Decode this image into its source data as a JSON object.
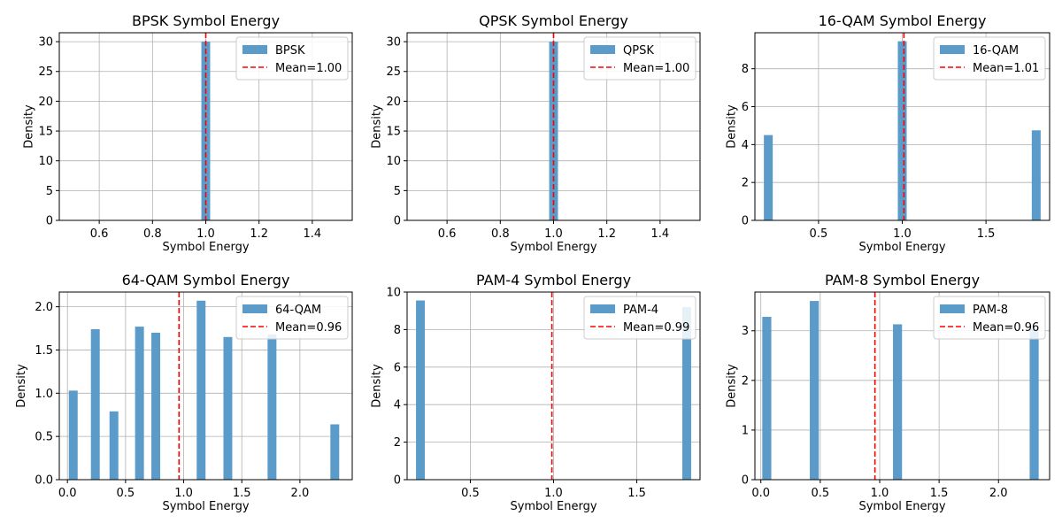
{
  "chart_data": [
    {
      "type": "bar",
      "title": "BPSK Symbol Energy",
      "xlabel": "Symbol Energy",
      "ylabel": "Density",
      "xlim": [
        0.45,
        1.55
      ],
      "ylim": [
        0,
        31.5
      ],
      "xticks": [
        0.6,
        0.8,
        1.0,
        1.2,
        1.4
      ],
      "xtick_labels": [
        "0.6",
        "0.8",
        "1.0",
        "1.2",
        "1.4"
      ],
      "yticks": [
        0,
        5,
        10,
        15,
        20,
        25,
        30
      ],
      "ytick_labels": [
        "0",
        "5",
        "10",
        "15",
        "20",
        "25",
        "30"
      ],
      "bar_width": 0.033,
      "bars": [
        {
          "x": 1.0,
          "value": 30.0
        }
      ],
      "mean": 1.0,
      "legend": {
        "series": "BPSK",
        "mean": "Mean=1.00",
        "position": "top-right"
      },
      "grid": true
    },
    {
      "type": "bar",
      "title": "QPSK Symbol Energy",
      "xlabel": "Symbol Energy",
      "ylabel": "Density",
      "xlim": [
        0.45,
        1.55
      ],
      "ylim": [
        0,
        31.5
      ],
      "xticks": [
        0.6,
        0.8,
        1.0,
        1.2,
        1.4
      ],
      "xtick_labels": [
        "0.6",
        "0.8",
        "1.0",
        "1.2",
        "1.4"
      ],
      "yticks": [
        0,
        5,
        10,
        15,
        20,
        25,
        30
      ],
      "ytick_labels": [
        "0",
        "5",
        "10",
        "15",
        "20",
        "25",
        "30"
      ],
      "bar_width": 0.033,
      "bars": [
        {
          "x": 1.0,
          "value": 30.0
        }
      ],
      "mean": 1.0,
      "legend": {
        "series": "QPSK",
        "mean": "Mean=1.00",
        "position": "top-right"
      },
      "grid": true
    },
    {
      "type": "bar",
      "title": "16-QAM Symbol Energy",
      "xlabel": "Symbol Energy",
      "ylabel": "Density",
      "xlim": [
        0.12,
        1.88
      ],
      "ylim": [
        0,
        9.9
      ],
      "xticks": [
        0.5,
        1.0,
        1.5
      ],
      "xtick_labels": [
        "0.5",
        "1.0",
        "1.5"
      ],
      "yticks": [
        0,
        2,
        4,
        6,
        8
      ],
      "ytick_labels": [
        "0",
        "2",
        "4",
        "6",
        "8"
      ],
      "bar_width": 0.053,
      "bars": [
        {
          "x": 0.2,
          "value": 4.5
        },
        {
          "x": 1.0,
          "value": 9.45
        },
        {
          "x": 1.8,
          "value": 4.75
        }
      ],
      "mean": 1.01,
      "legend": {
        "series": "16-QAM",
        "mean": "Mean=1.01",
        "position": "top-right"
      },
      "grid": true
    },
    {
      "type": "bar",
      "title": "64-QAM Symbol Energy",
      "xlabel": "Symbol Energy",
      "ylabel": "Density",
      "xlim": [
        -0.07,
        2.45
      ],
      "ylim": [
        0,
        2.17
      ],
      "xticks": [
        0.0,
        0.5,
        1.0,
        1.5,
        2.0
      ],
      "xtick_labels": [
        "0.0",
        "0.5",
        "1.0",
        "1.5",
        "2.0"
      ],
      "yticks": [
        0,
        0.5,
        1.0,
        1.5,
        2.0
      ],
      "ytick_labels": [
        "0.0",
        "0.5",
        "1.0",
        "1.5",
        "2.0"
      ],
      "bar_width": 0.076,
      "bars": [
        {
          "x": 0.05,
          "value": 1.03
        },
        {
          "x": 0.24,
          "value": 1.74
        },
        {
          "x": 0.4,
          "value": 0.79
        },
        {
          "x": 0.62,
          "value": 1.77
        },
        {
          "x": 0.76,
          "value": 1.7
        },
        {
          "x": 1.15,
          "value": 2.07
        },
        {
          "x": 1.38,
          "value": 1.65
        },
        {
          "x": 1.76,
          "value": 1.68
        },
        {
          "x": 2.3,
          "value": 0.64
        }
      ],
      "mean": 0.96,
      "legend": {
        "series": "64-QAM",
        "mean": "Mean=0.96",
        "position": "top-right"
      },
      "grid": true
    },
    {
      "type": "bar",
      "title": "PAM-4 Symbol Energy",
      "xlabel": "Symbol Energy",
      "ylabel": "Density",
      "xlim": [
        0.12,
        1.88
      ],
      "ylim": [
        0,
        10
      ],
      "xticks": [
        0.5,
        1.0,
        1.5
      ],
      "xtick_labels": [
        "0.5",
        "1.0",
        "1.5"
      ],
      "yticks": [
        0,
        2,
        4,
        6,
        8,
        10
      ],
      "ytick_labels": [
        "0",
        "2",
        "4",
        "6",
        "8",
        "10"
      ],
      "bar_width": 0.053,
      "bars": [
        {
          "x": 0.2,
          "value": 9.55
        },
        {
          "x": 1.8,
          "value": 9.2
        }
      ],
      "mean": 0.99,
      "legend": {
        "series": "PAM-4",
        "mean": "Mean=0.99",
        "position": "top-right"
      },
      "grid": true
    },
    {
      "type": "bar",
      "title": "PAM-8 Symbol Energy",
      "xlabel": "Symbol Energy",
      "ylabel": "Density",
      "xlim": [
        -0.05,
        2.43
      ],
      "ylim": [
        0,
        3.78
      ],
      "xticks": [
        0.0,
        0.5,
        1.0,
        1.5,
        2.0
      ],
      "xtick_labels": [
        "0.0",
        "0.5",
        "1.0",
        "1.5",
        "2.0"
      ],
      "yticks": [
        0,
        1,
        2,
        3
      ],
      "ytick_labels": [
        "0",
        "1",
        "2",
        "3"
      ],
      "bar_width": 0.076,
      "bars": [
        {
          "x": 0.05,
          "value": 3.28
        },
        {
          "x": 0.45,
          "value": 3.6
        },
        {
          "x": 1.15,
          "value": 3.13
        },
        {
          "x": 2.3,
          "value": 3.05
        }
      ],
      "mean": 0.96,
      "legend": {
        "series": "PAM-8",
        "mean": "Mean=0.96",
        "position": "top-right"
      },
      "grid": true
    }
  ],
  "colors": {
    "bar": "#5b9bc9",
    "mean_line": "#ff0000",
    "grid": "#b0b0b0",
    "axes": "#000000"
  }
}
